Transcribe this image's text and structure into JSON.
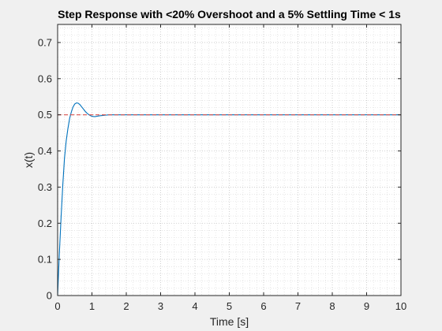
{
  "chart_data": {
    "type": "line",
    "title": "Step Response with <20% Overshoot and a 5% Settling Time < 1s",
    "xlabel": "Time [s]",
    "ylabel": "x(t)",
    "xlim": [
      0,
      10
    ],
    "ylim": [
      0,
      0.75
    ],
    "x_ticks": [
      "0",
      "1",
      "2",
      "3",
      "4",
      "5",
      "6",
      "7",
      "8",
      "9",
      "10"
    ],
    "y_ticks": [
      "0",
      "0.1",
      "0.2",
      "0.3",
      "0.4",
      "0.5",
      "0.6",
      "0.7"
    ],
    "grid": true,
    "minor_grid": true,
    "series": [
      {
        "color": "#0072bd",
        "x": [
          0,
          0.05,
          0.1,
          0.15,
          0.2,
          0.25,
          0.3,
          0.35,
          0.4,
          0.45,
          0.5,
          0.55,
          0.6,
          0.65,
          0.7,
          0.75,
          0.8,
          0.85,
          0.9,
          0.95,
          1.0,
          1.05,
          1.1,
          1.15,
          1.2,
          1.3,
          1.4,
          1.5,
          1.6,
          1.8,
          2.0,
          2.5,
          3,
          4,
          5,
          6,
          7,
          8,
          9,
          10
        ],
        "y": [
          0,
          0.115,
          0.215,
          0.305,
          0.38,
          0.428,
          0.462,
          0.49,
          0.508,
          0.522,
          0.53,
          0.533,
          0.532,
          0.528,
          0.522,
          0.516,
          0.51,
          0.505,
          0.501,
          0.498,
          0.496,
          0.495,
          0.495,
          0.496,
          0.497,
          0.498,
          0.499,
          0.5,
          0.5,
          0.5,
          0.5,
          0.5,
          0.5,
          0.5,
          0.5,
          0.5,
          0.5,
          0.5,
          0.5,
          0.5
        ]
      },
      {
        "color": "#d9534f",
        "dashed": true,
        "x": [
          0,
          10
        ],
        "y": [
          0.5,
          0.5
        ]
      }
    ]
  }
}
